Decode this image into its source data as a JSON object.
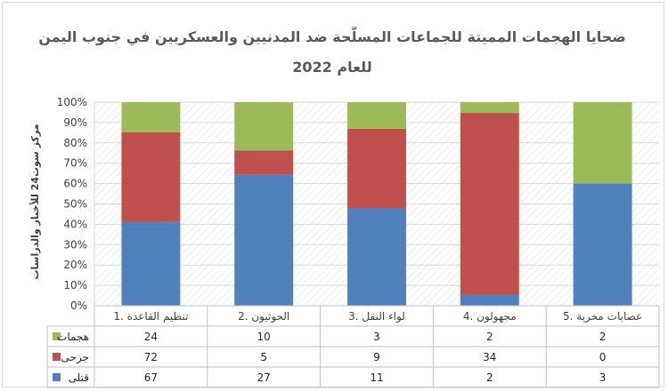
{
  "chart_data": {
    "type": "bar",
    "stacked": "percent",
    "title_line1": "ضحايا الهجمات المميتة للجماعات المسلّحة ضد المدنيين والعسكريين في جنوب اليمن",
    "title_line2": "للعام 2022",
    "ylabel": "مركز سوث24 للأخبار والدراسات",
    "y_ticks": [
      "0%",
      "10%",
      "20%",
      "30%",
      "40%",
      "50%",
      "60%",
      "70%",
      "80%",
      "90%",
      "100%"
    ],
    "ylim": [
      0,
      100
    ],
    "grid": true,
    "categories": [
      "1. تنظيم القاعدة",
      "2. الحوثيون",
      "3. لواء النقل",
      "4. مجهولون",
      "5. عصابات مخربة"
    ],
    "series": [
      {
        "name": "قتلى",
        "color": "#4f81bd",
        "values": [
          67,
          27,
          11,
          2,
          3
        ]
      },
      {
        "name": "جرحى",
        "color": "#c0504d",
        "values": [
          72,
          5,
          9,
          34,
          0
        ]
      },
      {
        "name": "هجمات",
        "color": "#9bbb59",
        "values": [
          24,
          10,
          3,
          2,
          2
        ]
      }
    ],
    "legend_placement": "data-table"
  }
}
